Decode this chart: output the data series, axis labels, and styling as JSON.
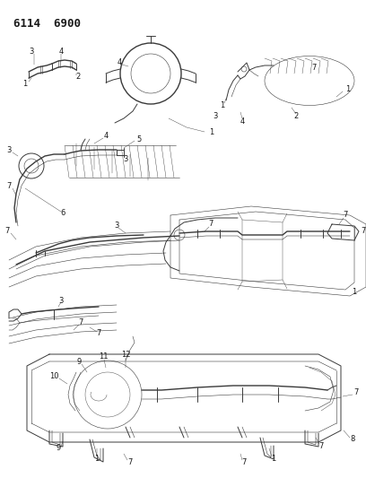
{
  "title": "6114  6900",
  "background_color": "#ffffff",
  "line_color": "#3a3a3a",
  "text_color": "#1a1a1a",
  "fig_width": 4.08,
  "fig_height": 5.33,
  "dpi": 100,
  "lw_thick": 1.0,
  "lw_main": 0.7,
  "lw_thin": 0.4,
  "lw_hair": 0.3
}
